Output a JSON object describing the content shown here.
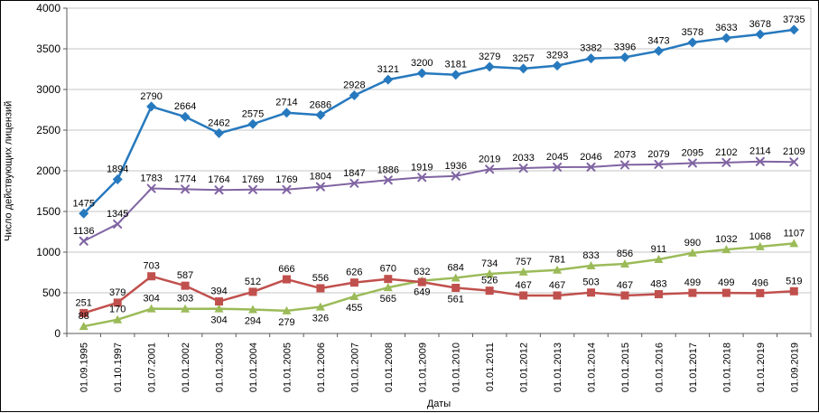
{
  "axes": {
    "y_label": "Число действующих лицензий",
    "x_label": "Даты"
  },
  "chart_data": {
    "type": "line",
    "title": "",
    "legend": "none",
    "grid": true,
    "ylim": [
      0,
      4000
    ],
    "y_ticks": [
      0,
      500,
      1000,
      1500,
      2000,
      2500,
      3000,
      3500,
      4000
    ],
    "categories": [
      "01.09.1995",
      "01.10.1997",
      "01.07.2001",
      "01.01.2002",
      "01.01.2003",
      "01.01.2004",
      "01.01.2005",
      "01.01.2006",
      "01.01.2007",
      "01.01.2008",
      "01.01.2009",
      "01.01.2010",
      "01.01.2011",
      "01.01.2012",
      "01.01.2013",
      "01.01.2014",
      "01.01.2015",
      "01.01.2016",
      "01.01.2017",
      "01.01.2018",
      "01.01.2019",
      "01.09.2019"
    ],
    "series": [
      {
        "name": "blue-diamond",
        "color": "#2779BE",
        "marker": "diamond",
        "line_width": 2.5,
        "label_placement": "above",
        "values": [
          1475,
          1894,
          2790,
          2664,
          2462,
          2575,
          2714,
          2686,
          2928,
          3121,
          3200,
          3181,
          3279,
          3257,
          3293,
          3382,
          3396,
          3473,
          3578,
          3633,
          3678,
          3735
        ]
      },
      {
        "name": "purple-x",
        "color": "#8064A2",
        "marker": "x",
        "line_width": 2,
        "label_placement": "above",
        "values": [
          1136,
          1345,
          1783,
          1774,
          1764,
          1769,
          1769,
          1804,
          1847,
          1886,
          1919,
          1936,
          2019,
          2033,
          2045,
          2046,
          2073,
          2079,
          2095,
          2102,
          2114,
          2109
        ]
      },
      {
        "name": "red-square",
        "color": "#C0504D",
        "marker": "square",
        "line_width": 2.5,
        "label_placement": [
          "above",
          "above",
          "above",
          "above",
          "above",
          "above",
          "above",
          "above",
          "above",
          "above",
          "above",
          "below",
          "above",
          "above",
          "above",
          "above",
          "above",
          "above",
          "above",
          "above",
          "above",
          "above"
        ],
        "values": [
          251,
          379,
          703,
          587,
          394,
          512,
          666,
          556,
          626,
          670,
          632,
          561,
          526,
          467,
          467,
          503,
          467,
          483,
          499,
          499,
          496,
          519
        ]
      },
      {
        "name": "green-triangle",
        "color": "#9BBB59",
        "marker": "triangle",
        "line_width": 2.5,
        "label_placement": [
          "above",
          "above",
          "above",
          "above",
          "below",
          "below",
          "below",
          "below",
          "below",
          "below",
          "below",
          "above",
          "above",
          "above",
          "above",
          "above",
          "above",
          "above",
          "above",
          "above",
          "above",
          "above"
        ],
        "values": [
          88,
          170,
          304,
          303,
          304,
          294,
          279,
          326,
          455,
          565,
          649,
          684,
          734,
          757,
          781,
          833,
          856,
          911,
          990,
          1032,
          1068,
          1107
        ]
      }
    ]
  },
  "style": {
    "grid_color": "#C6C6C6",
    "axis_color": "#595959",
    "label_color": "#000000"
  }
}
